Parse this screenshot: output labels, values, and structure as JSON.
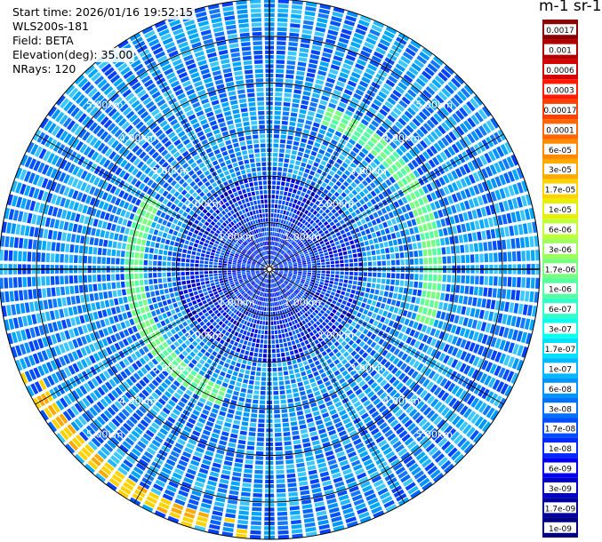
{
  "info": {
    "start_time": "Start time: 2026/01/16 19:52:15",
    "instrument": "WLS200s-181",
    "field": "Field: BETA",
    "elevation": "Elevation(deg): 35.00",
    "nrays": "NRays: 120"
  },
  "colorbar": {
    "title": "m-1 sr-1",
    "labels": [
      "0.0017",
      "0.001",
      "0.0006",
      "0.0003",
      "0.00017",
      "0.0001",
      "6e-05",
      "3e-05",
      "1.7e-05",
      "1e-05",
      "6e-06",
      "3e-06",
      "1.7e-06",
      "1e-06",
      "6e-07",
      "3e-07",
      "1.7e-07",
      "1e-07",
      "6e-08",
      "3e-08",
      "1.7e-08",
      "1e-08",
      "6e-09",
      "3e-09",
      "1.7e-09",
      "1e-09"
    ],
    "colors": [
      "#8b0000",
      "#b00000",
      "#d50000",
      "#ff1a00",
      "#ff4000",
      "#ff6500",
      "#ff8a00",
      "#ffaa00",
      "#ffd200",
      "#e8f000",
      "#c0ff37",
      "#9cff5b",
      "#78ff7f",
      "#54ffa3",
      "#2fffc8",
      "#0bffec",
      "#00e0ff",
      "#00b8ff",
      "#0094ff",
      "#0070ff",
      "#004cff",
      "#0028ff",
      "#0000f1",
      "#0000c8",
      "#0000a0",
      "#000080"
    ]
  },
  "chart_data": {
    "type": "polar-scan",
    "field": "BETA",
    "elevation_deg": 35.0,
    "nrays": 120,
    "range_ring_labels": [
      "1.00km",
      "2.00km",
      "3.00km",
      "4.00km",
      "5.00km"
    ],
    "range_rings_km": [
      1,
      2,
      3,
      4,
      5
    ],
    "max_range_km": 5.8,
    "features": [
      {
        "name": "enhanced backscatter arc",
        "range_km": 3.5,
        "azimuth_deg": [
          20,
          110
        ],
        "level": "1.7e-06"
      },
      {
        "name": "enhanced backscatter arc",
        "range_km": 2.9,
        "azimuth_deg": [
          200,
          300
        ],
        "level": "1.7e-06"
      },
      {
        "name": "edge echoes",
        "range_km": 5.5,
        "azimuth_deg": [
          195,
          240
        ],
        "level": "3e-05"
      }
    ]
  }
}
